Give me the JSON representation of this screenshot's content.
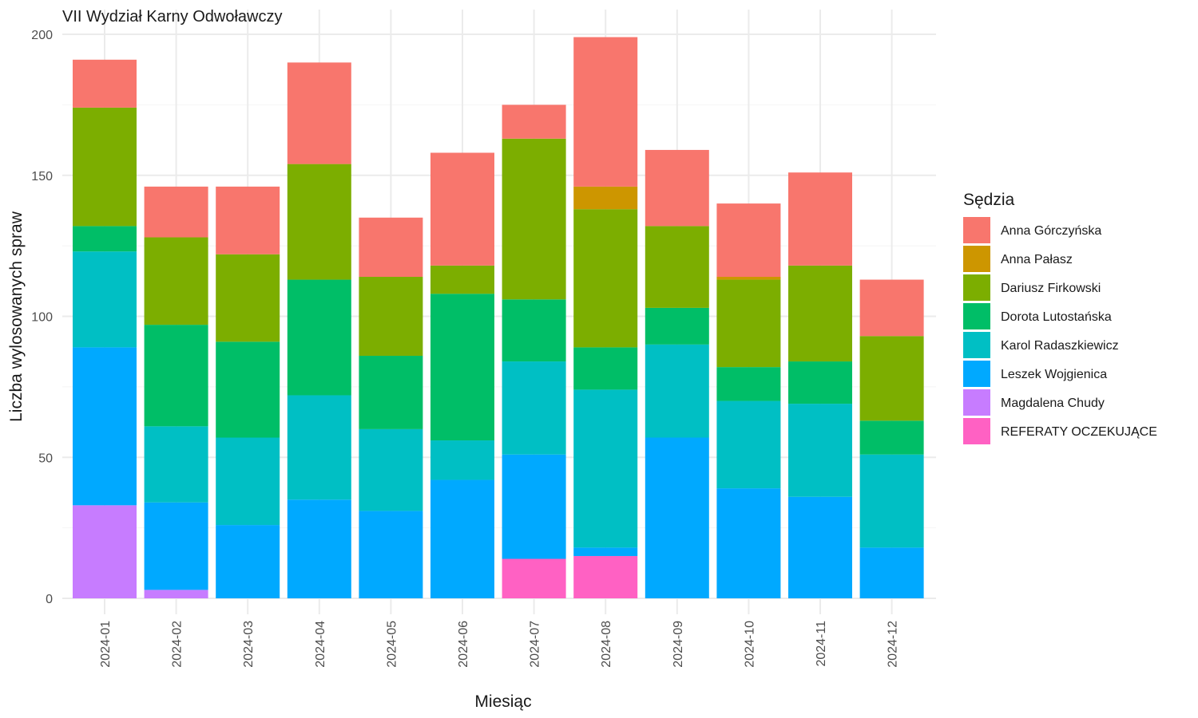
{
  "chart_data": {
    "type": "bar",
    "stacked": true,
    "title": "VII Wydział Karny Odwoławczy",
    "xlabel": "Miesiąc",
    "ylabel": "Liczba wylosowanych spraw",
    "ylim": [
      0,
      200
    ],
    "yticks": [
      0,
      50,
      100,
      150,
      200
    ],
    "grid": true,
    "legend": {
      "title": "Sędzia",
      "position": "right"
    },
    "categories": [
      "2024-01",
      "2024-02",
      "2024-03",
      "2024-04",
      "2024-05",
      "2024-06",
      "2024-07",
      "2024-08",
      "2024-09",
      "2024-10",
      "2024-11",
      "2024-12"
    ],
    "series": [
      {
        "name": "REFERATY OCZEKUJĄCE",
        "color": "#FF61C3",
        "values": [
          0,
          0,
          0,
          0,
          0,
          0,
          14,
          15,
          0,
          0,
          0,
          0
        ]
      },
      {
        "name": "Magdalena Chudy",
        "color": "#C77CFF",
        "values": [
          33,
          3,
          0,
          0,
          0,
          0,
          0,
          0,
          0,
          0,
          0,
          0
        ]
      },
      {
        "name": "Leszek Wojgienica",
        "color": "#00A9FF",
        "values": [
          56,
          31,
          26,
          35,
          31,
          42,
          37,
          3,
          57,
          39,
          36,
          18
        ]
      },
      {
        "name": "Karol Radaszkiewicz",
        "color": "#00BFC4",
        "values": [
          34,
          27,
          31,
          37,
          29,
          14,
          33,
          56,
          33,
          31,
          33,
          33
        ]
      },
      {
        "name": "Dorota Lutostańska",
        "color": "#00BE67",
        "values": [
          9,
          36,
          34,
          41,
          26,
          52,
          22,
          15,
          13,
          12,
          15,
          12
        ]
      },
      {
        "name": "Dariusz Firkowski",
        "color": "#7CAE00",
        "values": [
          42,
          31,
          31,
          41,
          28,
          10,
          57,
          49,
          29,
          31,
          34,
          30
        ]
      },
      {
        "name": "Anna Pałasz",
        "color": "#CD9600",
        "values": [
          0,
          0,
          0,
          0,
          0,
          0,
          0,
          8,
          0,
          1,
          0,
          0
        ]
      },
      {
        "name": "Anna Górczyńska",
        "color": "#F8766D",
        "values": [
          17,
          18,
          24,
          36,
          21,
          40,
          12,
          53,
          27,
          26,
          33,
          20
        ]
      }
    ],
    "legend_order": [
      "Anna Górczyńska",
      "Anna Pałasz",
      "Dariusz Firkowski",
      "Dorota Lutostańska",
      "Karol Radaszkiewicz",
      "Leszek Wojgienica",
      "Magdalena Chudy",
      "REFERATY OCZEKUJĄCE"
    ]
  }
}
